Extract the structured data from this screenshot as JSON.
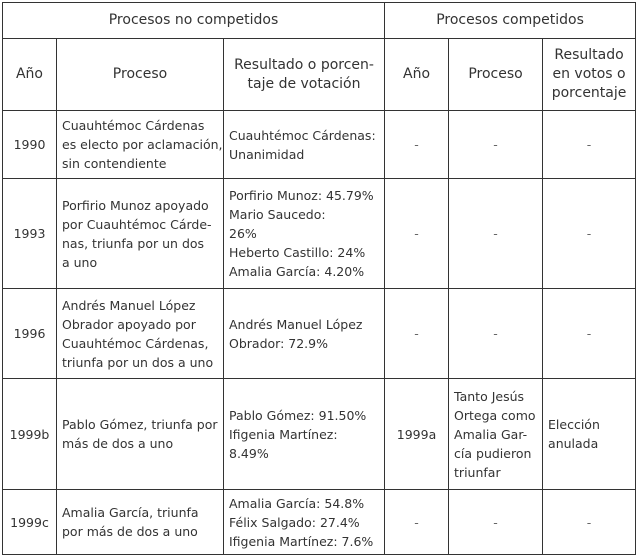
{
  "groups": {
    "non_competitive": "Procesos no competidos",
    "competitive": "Procesos competidos"
  },
  "headers": {
    "year_nc": "Año",
    "process_nc": "Proceso",
    "result_nc": [
      "Resultado o porcen-",
      "taje de votación"
    ],
    "year_c": "Año",
    "process_c": "Proceso",
    "result_c": [
      "Resultado",
      "en votos o",
      "porcentaje"
    ]
  },
  "rows": [
    {
      "year": "1990",
      "process": [
        "Cuauhtémoc Cárdenas",
        "es electo por aclamación,",
        "sin contendiente"
      ],
      "result": [
        "Cuauhtémoc Cárdenas:",
        "Unanimidad"
      ],
      "c_year": "-",
      "c_process": [
        "-"
      ],
      "c_result": [
        "-"
      ]
    },
    {
      "year": "1993",
      "process": [
        "Porfirio Munoz apoyado",
        "por Cuauhtémoc Cárde-",
        "nas, triunfa por un dos",
        "a uno"
      ],
      "result": [
        "Porfirio Munoz: 45.79%",
        "Mario Saucedo:",
        "26%",
        "Heberto Castillo: 24%",
        "Amalia García: 4.20%"
      ],
      "c_year": "-",
      "c_process": [
        "-"
      ],
      "c_result": [
        "-"
      ]
    },
    {
      "year": "1996",
      "process": [
        "Andrés Manuel López",
        "Obrador apoyado por",
        "Cuauhtémoc Cárdenas,",
        "triunfa por un dos a uno"
      ],
      "result": [
        "Andrés Manuel López",
        "Obrador: 72.9%"
      ],
      "c_year": "-",
      "c_process": [
        "-"
      ],
      "c_result": [
        "-"
      ]
    },
    {
      "year": "1999b",
      "process": [
        "Pablo Gómez, triunfa por",
        "más de dos a uno"
      ],
      "result": [
        "Pablo Gómez: 91.50%",
        "Ifigenia Martínez:",
        "8.49%"
      ],
      "c_year": "1999a",
      "c_process": [
        "Tanto Jesús",
        "Ortega como",
        "Amalia Gar-",
        "cía pudieron",
        "triunfar"
      ],
      "c_result": [
        "Elección",
        "anulada"
      ]
    },
    {
      "year": "1999c",
      "process": [
        "Amalia García, triunfa",
        "por más de dos a uno"
      ],
      "result": [
        "Amalia García: 54.8%",
        "Félix Salgado: 27.4%",
        "Ifigenia Martínez: 7.6%"
      ],
      "c_year": "-",
      "c_process": [
        "-"
      ],
      "c_result": [
        "-"
      ]
    }
  ]
}
